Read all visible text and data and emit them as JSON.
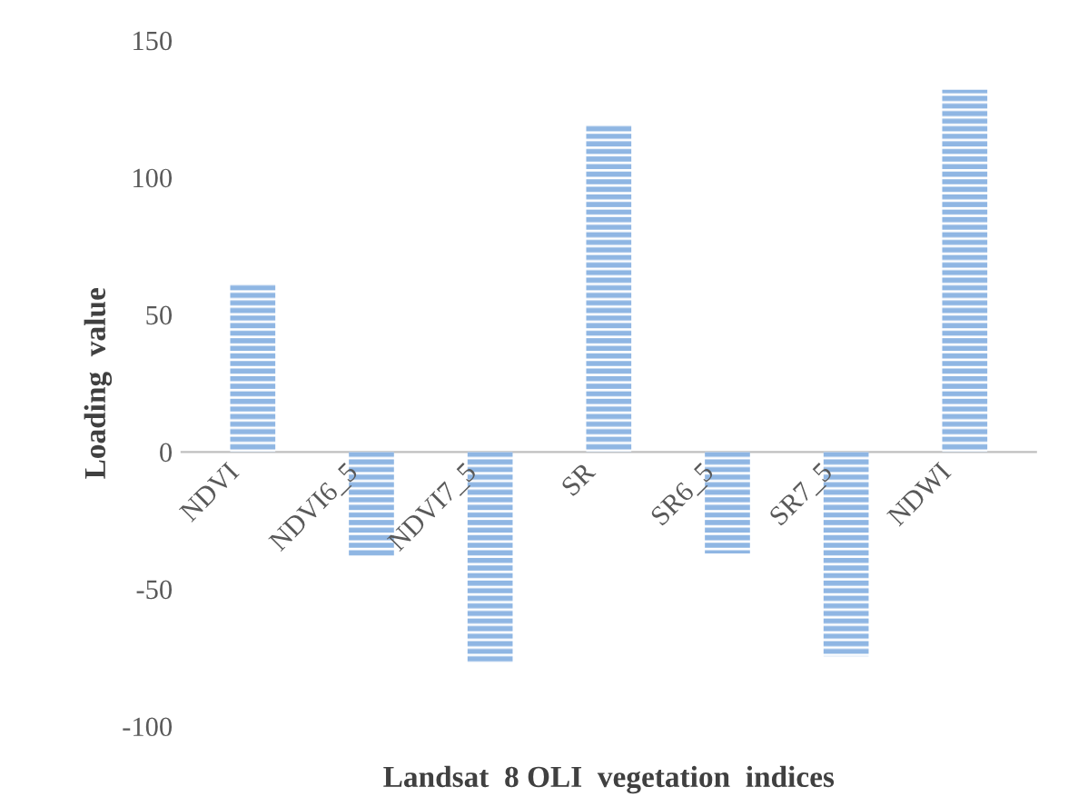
{
  "chart_data": {
    "type": "bar",
    "xlabel": "Landsat  8 OLI  vegetation  indices",
    "ylabel": "Loading  value",
    "categories": [
      "NDVI",
      "NDVI6_5",
      "NDVI7_5",
      "SR",
      "SR6_5",
      "SR7_5",
      "NDWI"
    ],
    "values": [
      61,
      -38,
      -77,
      119,
      -37,
      -74.5,
      132
    ],
    "color": "#8fb6e3",
    "ylim": [
      -100,
      150
    ],
    "yticks": [
      -100,
      -50,
      0,
      50,
      100,
      150
    ],
    "grid": false
  }
}
